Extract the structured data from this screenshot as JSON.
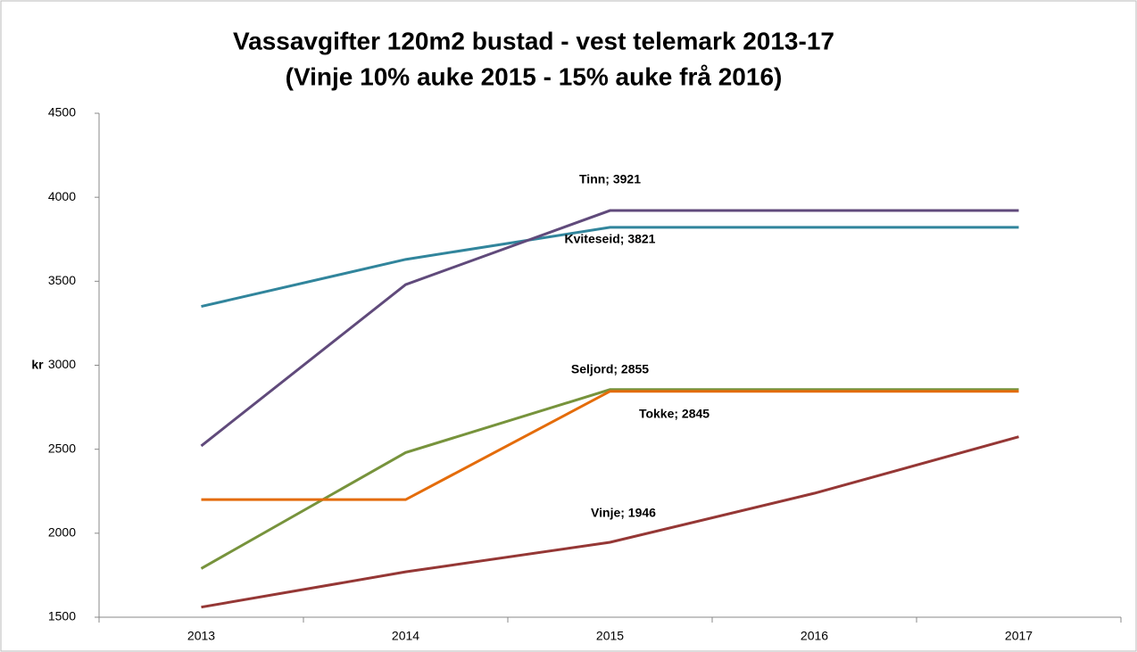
{
  "chart_data": {
    "type": "line",
    "title": "Vassavgifter 120m2 bustad - vest telemark 2013-17",
    "subtitle": "(Vinje 10% auke 2015 - 15% auke frå 2016)",
    "y_label": "kr",
    "categories": [
      "2013",
      "2014",
      "2015",
      "2016",
      "2017"
    ],
    "ylim": [
      1500,
      4500
    ],
    "yticks": [
      1500,
      2000,
      2500,
      3000,
      3500,
      4000,
      4500
    ],
    "grid": false,
    "series": [
      {
        "color": "#31859c",
        "values": [
          3350,
          3630,
          3821,
          3821,
          3821
        ],
        "value_labels": [
          null,
          null,
          "Kviteseid; 3821",
          null,
          null
        ]
      },
      {
        "color": "#604a7b",
        "values": [
          2520,
          3480,
          3921,
          3921,
          3921
        ],
        "value_labels": [
          null,
          null,
          "Tinn; 3921",
          null,
          null
        ]
      },
      {
        "color": "#77933c",
        "values": [
          1790,
          2480,
          2855,
          2855,
          2855
        ],
        "value_labels": [
          null,
          null,
          "Seljord; 2855",
          null,
          null
        ]
      },
      {
        "color": "#e46c0a",
        "values": [
          2200,
          2200,
          2845,
          2845,
          2845
        ],
        "value_labels": [
          null,
          null,
          "Tokke; 2845",
          null,
          null
        ]
      },
      {
        "color": "#953735",
        "values": [
          1560,
          1770,
          1946,
          2238,
          2574
        ],
        "value_labels": [
          null,
          null,
          "Vinje; 1946",
          null,
          null
        ]
      }
    ]
  }
}
